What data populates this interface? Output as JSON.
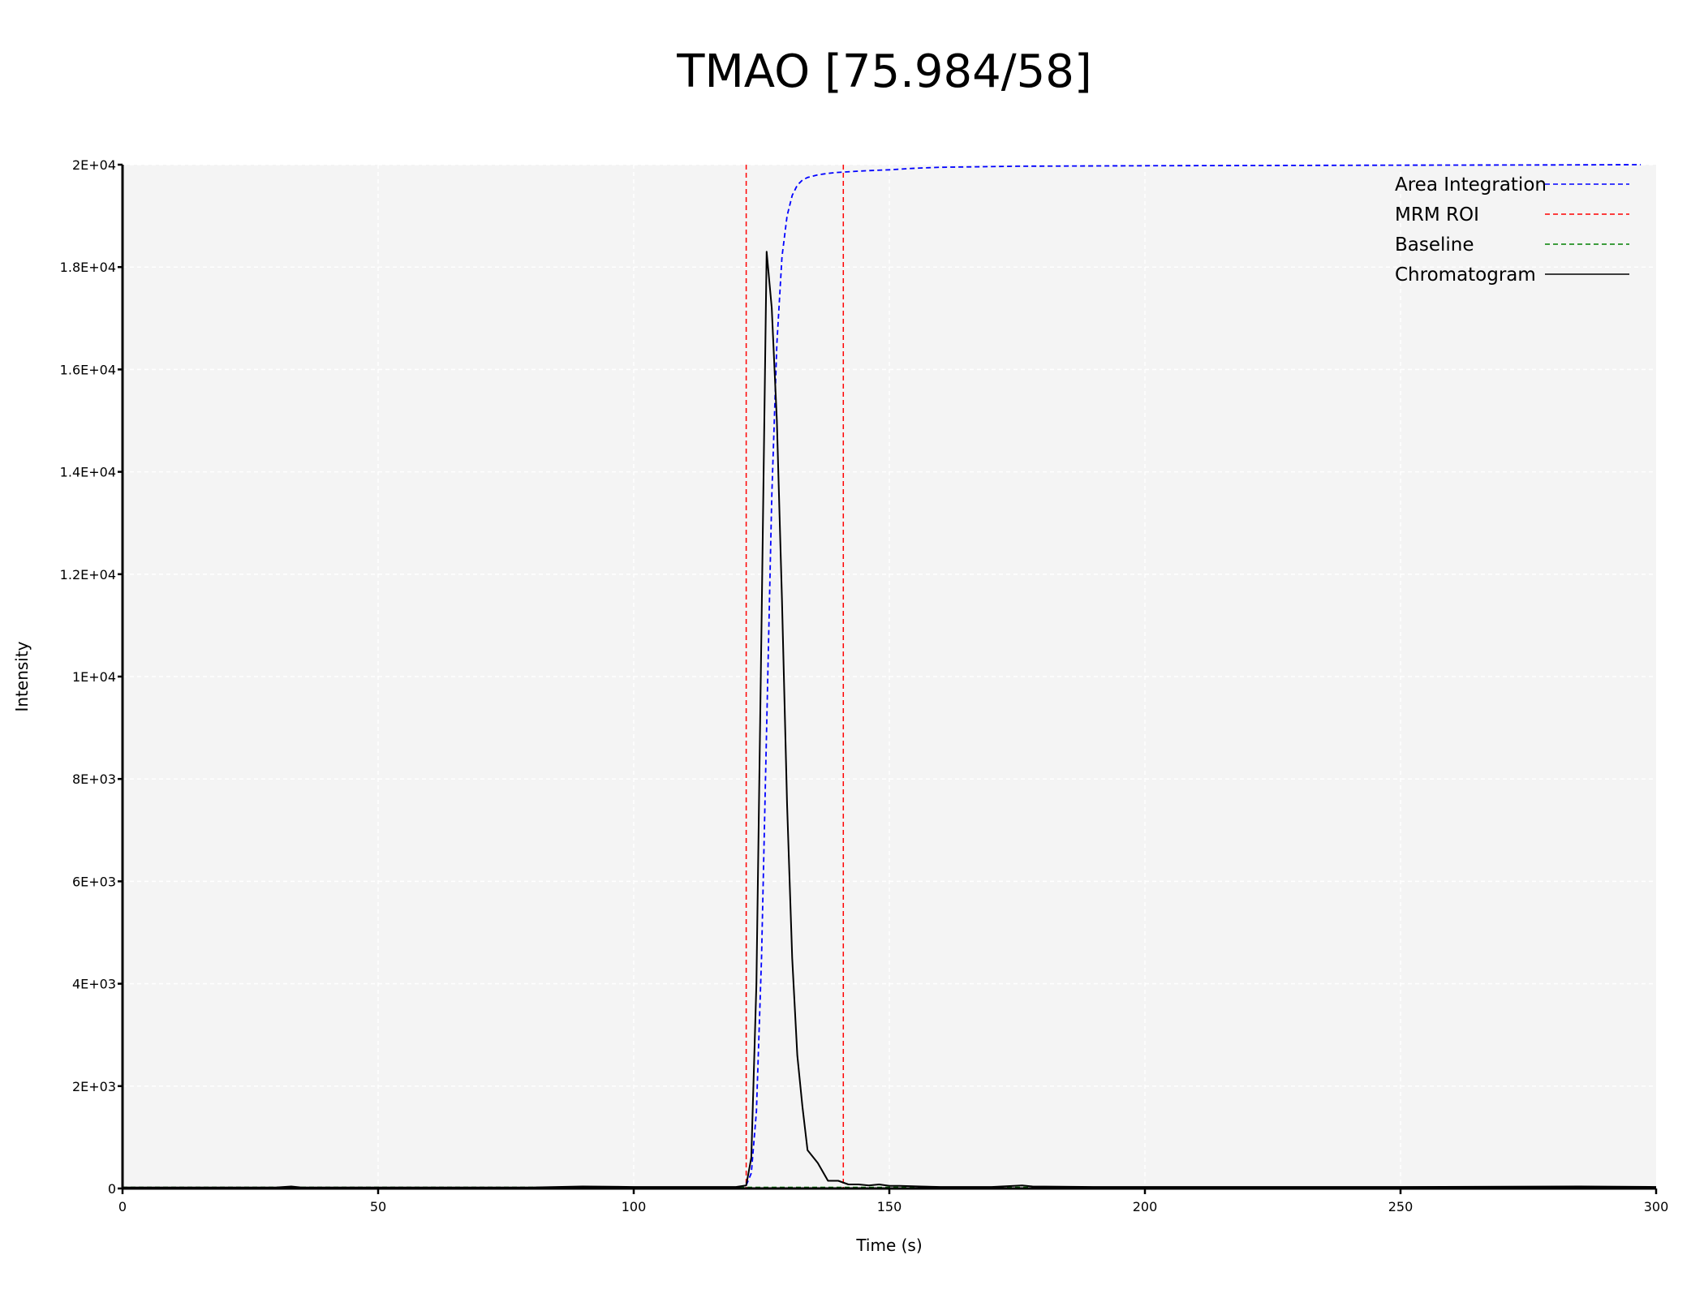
{
  "chart_data": {
    "type": "line",
    "title": "TMAO [75.984/58]",
    "xlabel": "Time (s)",
    "ylabel": "Intensity",
    "xlim": [
      0,
      300
    ],
    "ylim": [
      0,
      20000
    ],
    "x_ticks": [
      0,
      50,
      100,
      150,
      200,
      250,
      300
    ],
    "x_tick_labels": [
      "0",
      "50",
      "100",
      "150",
      "200",
      "250",
      "300"
    ],
    "y_ticks": [
      0,
      2000,
      4000,
      6000,
      8000,
      10000,
      12000,
      14000,
      16000,
      18000,
      20000
    ],
    "y_tick_labels": [
      "0",
      "2E+03",
      "4E+03",
      "6E+03",
      "8E+03",
      "1E+04",
      "1.2E+04",
      "1.4E+04",
      "1.6E+04",
      "1.8E+04",
      "2E+04"
    ],
    "grid": true,
    "legend_position": "top-right",
    "series": [
      {
        "name": "Area Integration",
        "color": "#0000ff",
        "style": "dashed",
        "x": [
          0,
          50,
          100,
          121,
          122,
          123,
          124,
          125,
          126,
          127,
          128,
          129,
          130,
          131,
          132,
          133,
          134,
          136,
          138,
          140,
          145,
          150,
          155,
          160,
          175,
          200,
          250,
          280,
          297
        ],
        "y": [
          0,
          0,
          0,
          0,
          60,
          300,
          1500,
          4500,
          9000,
          13500,
          16500,
          18200,
          19000,
          19400,
          19600,
          19700,
          19750,
          19800,
          19830,
          19850,
          19880,
          19900,
          19930,
          19950,
          19970,
          19980,
          19990,
          19995,
          20000
        ]
      },
      {
        "name": "MRM ROI",
        "color": "#ff0000",
        "style": "dashed",
        "x_lines": [
          122,
          141
        ]
      },
      {
        "name": "Baseline",
        "color": "#008000",
        "style": "dashed",
        "x": [
          0,
          300
        ],
        "y": [
          20,
          20
        ]
      },
      {
        "name": "Chromatogram",
        "color": "#000000",
        "style": "solid",
        "x": [
          0,
          10,
          20,
          30,
          33,
          35,
          40,
          50,
          60,
          70,
          80,
          90,
          100,
          110,
          120,
          122,
          123,
          124,
          125,
          126,
          127,
          128,
          129,
          130,
          131,
          132,
          133,
          134,
          136,
          138,
          140,
          142,
          144,
          146,
          148,
          150,
          152,
          156,
          160,
          170,
          176,
          178,
          190,
          200,
          230,
          250,
          285,
          300
        ],
        "y": [
          20,
          20,
          20,
          20,
          40,
          20,
          20,
          20,
          20,
          20,
          20,
          40,
          30,
          30,
          30,
          60,
          600,
          4000,
          11000,
          18300,
          17200,
          15000,
          11500,
          7500,
          4500,
          2600,
          1600,
          750,
          500,
          150,
          150,
          80,
          80,
          60,
          80,
          50,
          50,
          40,
          30,
          30,
          60,
          40,
          30,
          30,
          30,
          30,
          40,
          30
        ]
      }
    ]
  }
}
